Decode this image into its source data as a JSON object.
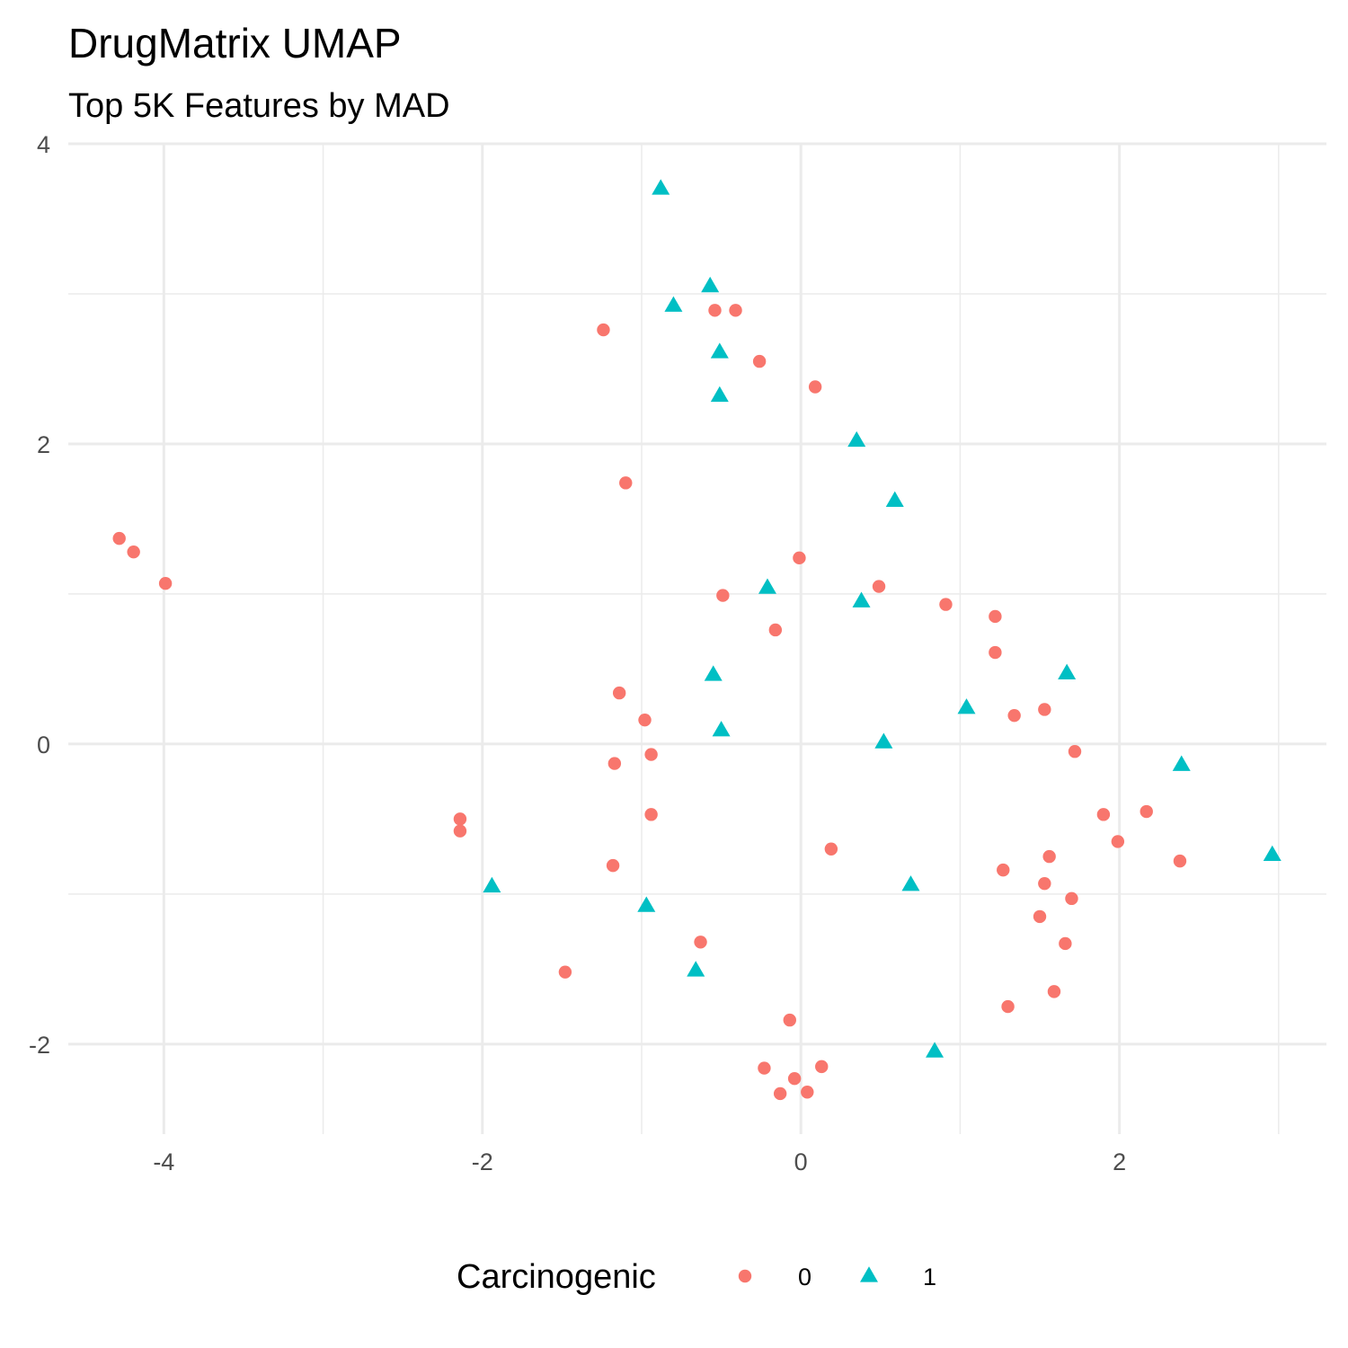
{
  "chart_data": {
    "type": "scatter",
    "title": "DrugMatrix UMAP",
    "subtitle": "Top 5K Features by MAD",
    "xlabel": "",
    "ylabel": "",
    "xlim": [
      -4.6,
      3.3
    ],
    "ylim": [
      -2.6,
      4.0
    ],
    "x_ticks": [
      -4,
      -2,
      0,
      2
    ],
    "y_ticks": [
      -2,
      0,
      2,
      4
    ],
    "grid": true,
    "legend": {
      "title": "Carcinogenic",
      "position": "bottom"
    },
    "series": [
      {
        "name": "0",
        "color": "#F8766D",
        "marker": "circle",
        "points": [
          [
            -4.28,
            1.37
          ],
          [
            -4.19,
            1.28
          ],
          [
            -3.99,
            1.07
          ],
          [
            -1.24,
            2.76
          ],
          [
            -0.54,
            2.89
          ],
          [
            -0.41,
            2.89
          ],
          [
            -0.26,
            2.55
          ],
          [
            0.09,
            2.38
          ],
          [
            -1.1,
            1.74
          ],
          [
            -0.01,
            1.24
          ],
          [
            -0.49,
            0.99
          ],
          [
            0.49,
            1.05
          ],
          [
            -0.16,
            0.76
          ],
          [
            0.91,
            0.93
          ],
          [
            1.22,
            0.85
          ],
          [
            1.22,
            0.61
          ],
          [
            -1.14,
            0.34
          ],
          [
            -0.98,
            0.16
          ],
          [
            -0.94,
            -0.07
          ],
          [
            -1.17,
            -0.13
          ],
          [
            -0.94,
            -0.47
          ],
          [
            1.34,
            0.19
          ],
          [
            1.53,
            0.23
          ],
          [
            1.72,
            -0.05
          ],
          [
            -2.14,
            -0.5
          ],
          [
            -2.14,
            -0.58
          ],
          [
            -1.18,
            -0.81
          ],
          [
            0.19,
            -0.7
          ],
          [
            1.9,
            -0.47
          ],
          [
            2.17,
            -0.45
          ],
          [
            1.99,
            -0.65
          ],
          [
            2.38,
            -0.78
          ],
          [
            1.27,
            -0.84
          ],
          [
            1.56,
            -0.75
          ],
          [
            1.53,
            -0.93
          ],
          [
            1.7,
            -1.03
          ],
          [
            1.5,
            -1.15
          ],
          [
            1.66,
            -1.33
          ],
          [
            1.59,
            -1.65
          ],
          [
            1.3,
            -1.75
          ],
          [
            -0.63,
            -1.32
          ],
          [
            -1.48,
            -1.52
          ],
          [
            -0.07,
            -1.84
          ],
          [
            -0.23,
            -2.16
          ],
          [
            -0.04,
            -2.23
          ],
          [
            0.13,
            -2.15
          ],
          [
            -0.13,
            -2.33
          ],
          [
            0.04,
            -2.32
          ]
        ]
      },
      {
        "name": "1",
        "color": "#00BFC4",
        "marker": "triangle",
        "points": [
          [
            -0.88,
            3.7
          ],
          [
            -0.57,
            3.05
          ],
          [
            -0.8,
            2.92
          ],
          [
            -0.51,
            2.61
          ],
          [
            -0.51,
            2.32
          ],
          [
            0.35,
            2.02
          ],
          [
            0.59,
            1.62
          ],
          [
            -0.21,
            1.04
          ],
          [
            0.38,
            0.95
          ],
          [
            -0.55,
            0.46
          ],
          [
            -0.5,
            0.09
          ],
          [
            0.52,
            0.01
          ],
          [
            1.04,
            0.24
          ],
          [
            1.67,
            0.47
          ],
          [
            2.39,
            -0.14
          ],
          [
            2.96,
            -0.74
          ],
          [
            0.69,
            -0.94
          ],
          [
            -1.94,
            -0.95
          ],
          [
            -0.97,
            -1.08
          ],
          [
            -0.66,
            -1.51
          ],
          [
            0.84,
            -2.05
          ]
        ]
      }
    ]
  }
}
